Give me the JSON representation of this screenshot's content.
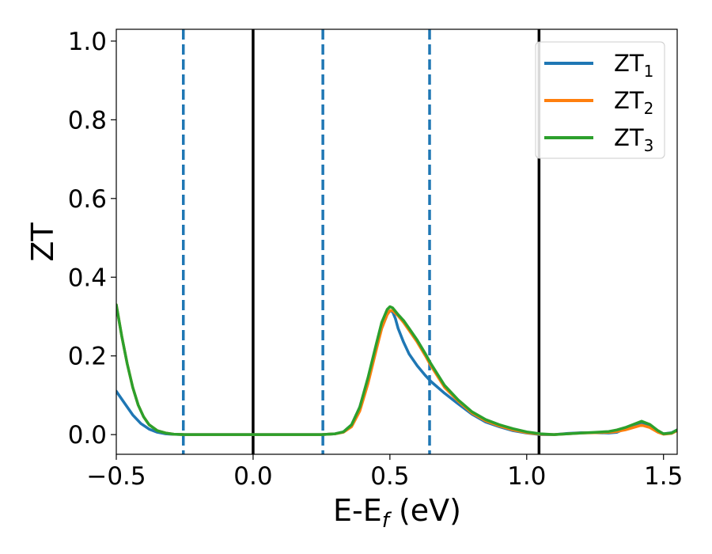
{
  "chart_data": {
    "type": "line",
    "xlabel": {
      "main": "E-E",
      "sub": "f",
      "unit": " (eV)"
    },
    "ylabel": "ZT",
    "xlim": [
      -0.5,
      1.55
    ],
    "ylim": [
      -0.05,
      1.03
    ],
    "xticks": [
      -0.5,
      0.0,
      0.5,
      1.0,
      1.5
    ],
    "xtick_labels": [
      "−0.5",
      "0.0",
      "0.5",
      "1.0",
      "1.5"
    ],
    "yticks": [
      0.0,
      0.2,
      0.4,
      0.6,
      0.8,
      1.0
    ],
    "ytick_labels": [
      "0.0",
      "0.2",
      "0.4",
      "0.6",
      "0.8",
      "1.0"
    ],
    "grid": false,
    "legend_position": "upper-right",
    "vlines_solid": [
      0.0,
      1.045
    ],
    "vlines_dashed": [
      -0.255,
      0.255,
      0.645
    ],
    "vline_solid_color": "#000000",
    "vline_dashed_color": "#1f77b4",
    "series": [
      {
        "name": "ZT",
        "subscript": "1",
        "color": "#1f77b4",
        "x": [
          -0.5,
          -0.47,
          -0.44,
          -0.41,
          -0.38,
          -0.35,
          -0.32,
          -0.3,
          -0.25,
          -0.2,
          -0.1,
          0.0,
          0.1,
          0.2,
          0.25,
          0.3,
          0.33,
          0.36,
          0.39,
          0.42,
          0.45,
          0.47,
          0.49,
          0.5,
          0.51,
          0.52,
          0.53,
          0.55,
          0.57,
          0.6,
          0.63,
          0.65,
          0.7,
          0.75,
          0.8,
          0.85,
          0.9,
          0.95,
          1.0,
          1.05,
          1.1,
          1.15,
          1.2,
          1.25,
          1.3,
          1.33,
          1.36,
          1.39,
          1.42,
          1.45,
          1.48,
          1.5,
          1.53,
          1.55
        ],
        "y": [
          0.11,
          0.08,
          0.05,
          0.028,
          0.014,
          0.006,
          0.002,
          0.001,
          0.0,
          0.0,
          0.0,
          0.0,
          0.0,
          0.0,
          0.0,
          0.002,
          0.007,
          0.025,
          0.07,
          0.14,
          0.22,
          0.27,
          0.305,
          0.315,
          0.312,
          0.295,
          0.27,
          0.235,
          0.205,
          0.175,
          0.15,
          0.135,
          0.105,
          0.078,
          0.052,
          0.032,
          0.02,
          0.01,
          0.004,
          0.0,
          0.0,
          0.003,
          0.005,
          0.005,
          0.004,
          0.006,
          0.015,
          0.025,
          0.03,
          0.022,
          0.008,
          0.002,
          0.005,
          0.012
        ]
      },
      {
        "name": "ZT",
        "subscript": "2",
        "color": "#ff7f0e",
        "x": [
          -0.5,
          -0.48,
          -0.46,
          -0.44,
          -0.42,
          -0.4,
          -0.38,
          -0.35,
          -0.32,
          -0.29,
          -0.25,
          -0.2,
          -0.1,
          0.0,
          0.1,
          0.2,
          0.25,
          0.3,
          0.33,
          0.36,
          0.39,
          0.42,
          0.45,
          0.47,
          0.49,
          0.5,
          0.51,
          0.53,
          0.55,
          0.57,
          0.6,
          0.63,
          0.65,
          0.7,
          0.75,
          0.8,
          0.85,
          0.9,
          0.95,
          1.0,
          1.05,
          1.1,
          1.15,
          1.2,
          1.25,
          1.3,
          1.33,
          1.36,
          1.39,
          1.42,
          1.45,
          1.48,
          1.5,
          1.53,
          1.55
        ],
        "y": [
          0.33,
          0.25,
          0.18,
          0.12,
          0.075,
          0.045,
          0.025,
          0.01,
          0.004,
          0.001,
          0.0,
          0.0,
          0.0,
          0.0,
          0.0,
          0.0,
          0.0,
          0.002,
          0.006,
          0.02,
          0.06,
          0.13,
          0.215,
          0.27,
          0.305,
          0.315,
          0.315,
          0.302,
          0.285,
          0.265,
          0.235,
          0.2,
          0.175,
          0.12,
          0.085,
          0.055,
          0.035,
          0.022,
          0.012,
          0.005,
          0.001,
          0.0,
          0.002,
          0.004,
          0.005,
          0.006,
          0.008,
          0.012,
          0.018,
          0.024,
          0.018,
          0.006,
          0.001,
          0.003,
          0.01
        ]
      },
      {
        "name": "ZT",
        "subscript": "3",
        "color": "#2ca02c",
        "x": [
          -0.5,
          -0.48,
          -0.46,
          -0.44,
          -0.42,
          -0.4,
          -0.38,
          -0.35,
          -0.32,
          -0.29,
          -0.25,
          -0.2,
          -0.1,
          0.0,
          0.1,
          0.2,
          0.25,
          0.3,
          0.33,
          0.36,
          0.39,
          0.42,
          0.45,
          0.47,
          0.49,
          0.5,
          0.51,
          0.53,
          0.55,
          0.57,
          0.6,
          0.63,
          0.65,
          0.7,
          0.75,
          0.8,
          0.85,
          0.9,
          0.95,
          1.0,
          1.05,
          1.1,
          1.15,
          1.2,
          1.25,
          1.3,
          1.33,
          1.36,
          1.39,
          1.42,
          1.45,
          1.48,
          1.5,
          1.53,
          1.55
        ],
        "y": [
          0.33,
          0.25,
          0.18,
          0.12,
          0.075,
          0.045,
          0.025,
          0.01,
          0.004,
          0.001,
          0.0,
          0.0,
          0.0,
          0.0,
          0.0,
          0.0,
          0.0,
          0.002,
          0.007,
          0.025,
          0.07,
          0.145,
          0.23,
          0.285,
          0.318,
          0.325,
          0.322,
          0.305,
          0.29,
          0.27,
          0.24,
          0.205,
          0.18,
          0.125,
          0.088,
          0.058,
          0.038,
          0.025,
          0.015,
          0.007,
          0.002,
          0.0,
          0.002,
          0.004,
          0.006,
          0.008,
          0.012,
          0.018,
          0.026,
          0.034,
          0.026,
          0.01,
          0.002,
          0.004,
          0.012
        ]
      }
    ]
  }
}
